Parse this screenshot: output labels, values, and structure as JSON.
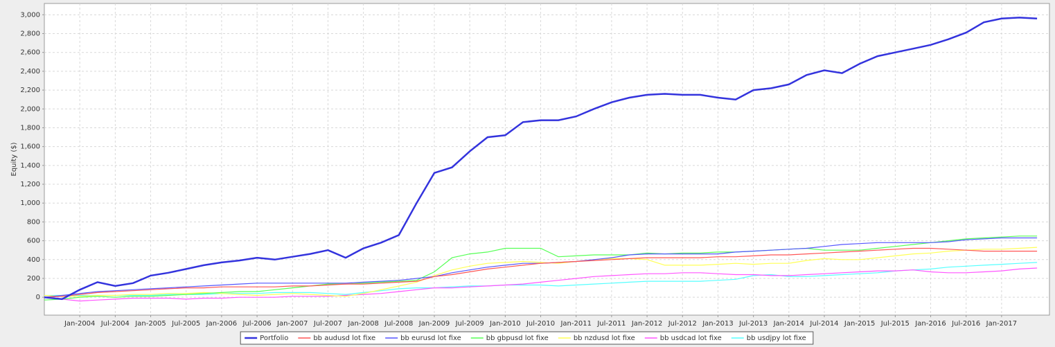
{
  "chart_data": {
    "type": "line",
    "y_label": "Equity ($)",
    "x": [
      null,
      null,
      "Jan-2004",
      null,
      "Jul-2004",
      null,
      "Jan-2005",
      null,
      "Jul-2005",
      null,
      "Jan-2006",
      null,
      "Jul-2006",
      null,
      "Jan-2007",
      null,
      "Jul-2007",
      null,
      "Jan-2008",
      null,
      "Jul-2008",
      null,
      "Jan-2009",
      null,
      "Jul-2009",
      null,
      "Jan-2010",
      null,
      "Jul-2010",
      null,
      "Jan-2011",
      null,
      "Jul-2011",
      null,
      "Jan-2012",
      null,
      "Jul-2012",
      null,
      "Jan-2013",
      null,
      "Jul-2013",
      null,
      "Jan-2014",
      null,
      "Jul-2014",
      null,
      "Jan-2015",
      null,
      "Jul-2015",
      null,
      "Jan-2016",
      null,
      "Jul-2016",
      null,
      "Jan-2017",
      null,
      null
    ],
    "ylim": [
      -190,
      3120
    ],
    "yticks": [
      0,
      200,
      400,
      600,
      800,
      {
        "value": 1000,
        "label": "1,000"
      },
      {
        "value": 1200,
        "label": "1,200"
      },
      {
        "value": 1400,
        "label": "1,400"
      },
      {
        "value": 1600,
        "label": "1,600"
      },
      {
        "value": 1800,
        "label": "1,800"
      },
      {
        "value": 2000,
        "label": "2,000"
      },
      {
        "value": 2200,
        "label": "2,200"
      },
      {
        "value": 2400,
        "label": "2,400"
      },
      {
        "value": 2600,
        "label": "2,600"
      },
      {
        "value": 2800,
        "label": "2,800"
      },
      {
        "value": 3000,
        "label": "3,000"
      }
    ],
    "grid": true,
    "legend": "bottom",
    "series": [
      {
        "name": "Portfolio",
        "color": "#3333dd",
        "values": [
          0,
          -20,
          80,
          160,
          120,
          150,
          230,
          260,
          300,
          340,
          370,
          390,
          420,
          400,
          430,
          460,
          500,
          420,
          520,
          580,
          660,
          1000,
          1320,
          1380,
          1550,
          1700,
          1720,
          1860,
          1880,
          1880,
          1920,
          2000,
          2070,
          2120,
          2150,
          2160,
          2150,
          2150,
          2120,
          2100,
          2200,
          2220,
          2260,
          2360,
          2410,
          2380,
          2480,
          2560,
          2600,
          2640,
          2680,
          2740,
          2810,
          2920,
          2960,
          2970,
          2960
        ]
      },
      {
        "name": "bb audusd lot fixe",
        "color": "#ff5555",
        "values": [
          0,
          10,
          30,
          50,
          60,
          70,
          80,
          90,
          100,
          100,
          110,
          110,
          110,
          110,
          120,
          120,
          130,
          140,
          140,
          150,
          160,
          170,
          220,
          240,
          270,
          300,
          320,
          340,
          360,
          370,
          380,
          390,
          400,
          410,
          420,
          420,
          420,
          420,
          430,
          430,
          440,
          450,
          450,
          460,
          470,
          480,
          490,
          500,
          510,
          520,
          520,
          510,
          500,
          490,
          490,
          490,
          490
        ]
      },
      {
        "name": "bb eurusd lot fixe",
        "color": "#5555ff",
        "values": [
          0,
          20,
          40,
          60,
          70,
          80,
          90,
          100,
          110,
          120,
          130,
          140,
          150,
          150,
          150,
          150,
          150,
          150,
          160,
          170,
          180,
          200,
          220,
          260,
          290,
          320,
          340,
          360,
          360,
          370,
          380,
          400,
          420,
          450,
          460,
          460,
          460,
          460,
          460,
          480,
          490,
          500,
          510,
          520,
          540,
          560,
          570,
          580,
          580,
          580,
          580,
          590,
          610,
          620,
          630,
          630,
          630
        ]
      },
      {
        "name": "bb gbpusd lot fixe",
        "color": "#55ff55",
        "values": [
          -30,
          -20,
          0,
          10,
          0,
          10,
          10,
          20,
          30,
          40,
          50,
          60,
          60,
          80,
          100,
          120,
          140,
          140,
          150,
          160,
          170,
          180,
          270,
          420,
          460,
          480,
          520,
          520,
          520,
          430,
          440,
          450,
          450,
          450,
          470,
          460,
          470,
          470,
          480,
          480,
          490,
          500,
          510,
          520,
          500,
          500,
          500,
          520,
          540,
          560,
          580,
          600,
          620,
          630,
          640,
          650,
          650
        ]
      },
      {
        "name": "bb nzdusd lot fixe",
        "color": "#ffff55",
        "values": [
          20,
          10,
          10,
          20,
          20,
          30,
          30,
          40,
          40,
          50,
          40,
          30,
          20,
          30,
          40,
          30,
          20,
          10,
          40,
          80,
          120,
          160,
          230,
          290,
          330,
          360,
          370,
          380,
          370,
          360,
          380,
          400,
          410,
          410,
          400,
          340,
          340,
          340,
          350,
          360,
          350,
          360,
          360,
          390,
          410,
          400,
          400,
          420,
          440,
          460,
          470,
          490,
          500,
          510,
          510,
          520,
          530
        ]
      },
      {
        "name": "bb usdcad lot fixe",
        "color": "#ff55ff",
        "values": [
          0,
          -20,
          -40,
          -30,
          -20,
          -10,
          -10,
          -10,
          -20,
          -10,
          -10,
          0,
          0,
          0,
          10,
          10,
          10,
          20,
          30,
          40,
          60,
          80,
          100,
          100,
          110,
          120,
          130,
          140,
          160,
          180,
          200,
          220,
          230,
          240,
          250,
          250,
          260,
          260,
          250,
          240,
          240,
          230,
          230,
          240,
          250,
          260,
          270,
          280,
          280,
          290,
          270,
          260,
          260,
          270,
          280,
          300,
          310
        ]
      },
      {
        "name": "bb usdjpy lot fixe",
        "color": "#55ffff",
        "values": [
          20,
          20,
          20,
          20,
          20,
          20,
          20,
          30,
          30,
          30,
          40,
          40,
          40,
          50,
          50,
          50,
          40,
          30,
          50,
          70,
          90,
          100,
          100,
          110,
          120,
          120,
          130,
          130,
          130,
          120,
          130,
          140,
          150,
          160,
          170,
          170,
          170,
          170,
          180,
          190,
          230,
          240,
          220,
          220,
          230,
          240,
          250,
          260,
          280,
          290,
          300,
          320,
          330,
          340,
          350,
          360,
          370
        ]
      }
    ]
  }
}
